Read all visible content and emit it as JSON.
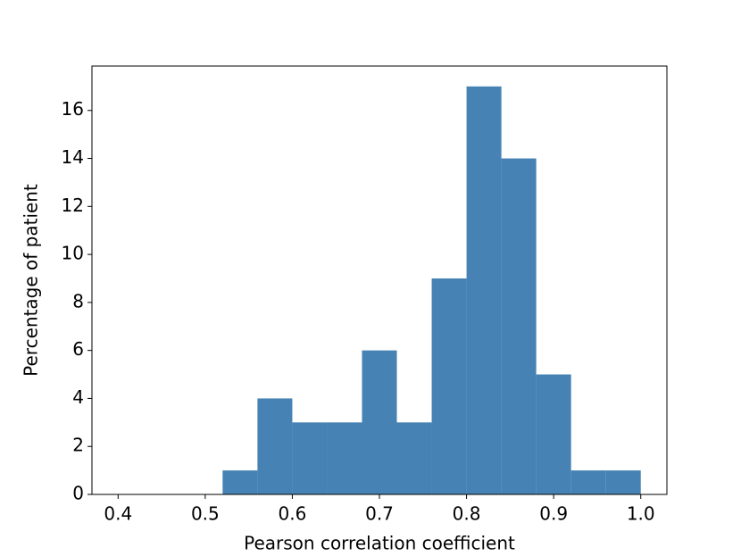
{
  "chart_data": {
    "type": "histogram",
    "x_label": "Pearson correlation coefficient",
    "y_label": "Percentage of patient",
    "bins": [
      0.4,
      0.44,
      0.48,
      0.52,
      0.56,
      0.6,
      0.64,
      0.68,
      0.72,
      0.76,
      0.8,
      0.84,
      0.88,
      0.92,
      0.96,
      1.0
    ],
    "values": [
      0,
      0,
      0,
      1,
      4,
      3,
      3,
      6,
      3,
      9,
      17,
      14,
      5,
      1,
      1
    ],
    "color": "#4682b4",
    "xlim": [
      0.37,
      1.03
    ],
    "xticks": [
      0.4,
      0.5,
      0.6,
      0.7,
      0.8,
      0.9,
      {
        "value": 1,
        "label": "1.0"
      }
    ],
    "ylim": [
      0,
      17.85
    ],
    "yticks": [
      0,
      2,
      4,
      6,
      8,
      10,
      12,
      14,
      16
    ]
  }
}
